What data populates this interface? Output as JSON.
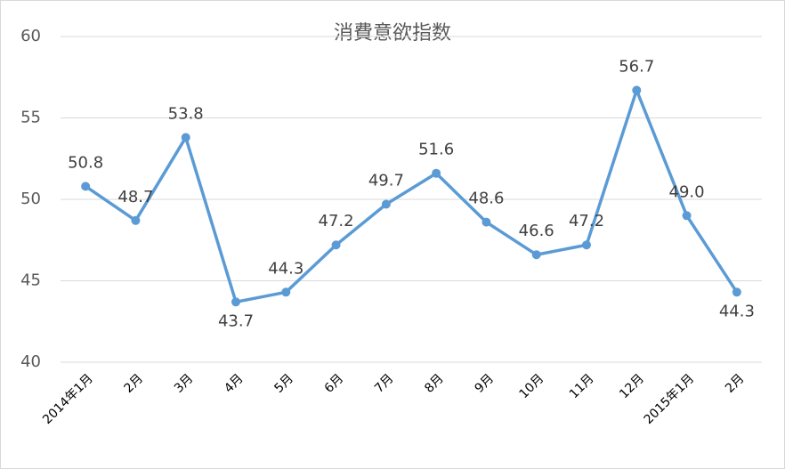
{
  "chart_data": {
    "type": "line",
    "title": "消費意欲指数",
    "categories": [
      "2014年1月",
      "2月",
      "3月",
      "4月",
      "5月",
      "6月",
      "7月",
      "8月",
      "9月",
      "10月",
      "11月",
      "12月",
      "2015年1月",
      "2月"
    ],
    "series": [
      {
        "color": "#5b9bd5",
        "values": [
          50.8,
          48.7,
          53.8,
          43.7,
          44.3,
          47.2,
          49.7,
          51.6,
          48.6,
          46.6,
          47.2,
          56.7,
          49.0,
          44.3
        ],
        "value_labels": [
          "50.8",
          "48.7",
          "53.8",
          "43.7",
          "44.3",
          "47.2",
          "49.7",
          "51.6",
          "48.6",
          "46.6",
          "47.2",
          "56.7",
          "49.0",
          "44.3"
        ]
      }
    ],
    "ylim": [
      40,
      60
    ],
    "yticks": [
      40,
      45,
      50,
      55,
      60
    ],
    "grid": true
  }
}
